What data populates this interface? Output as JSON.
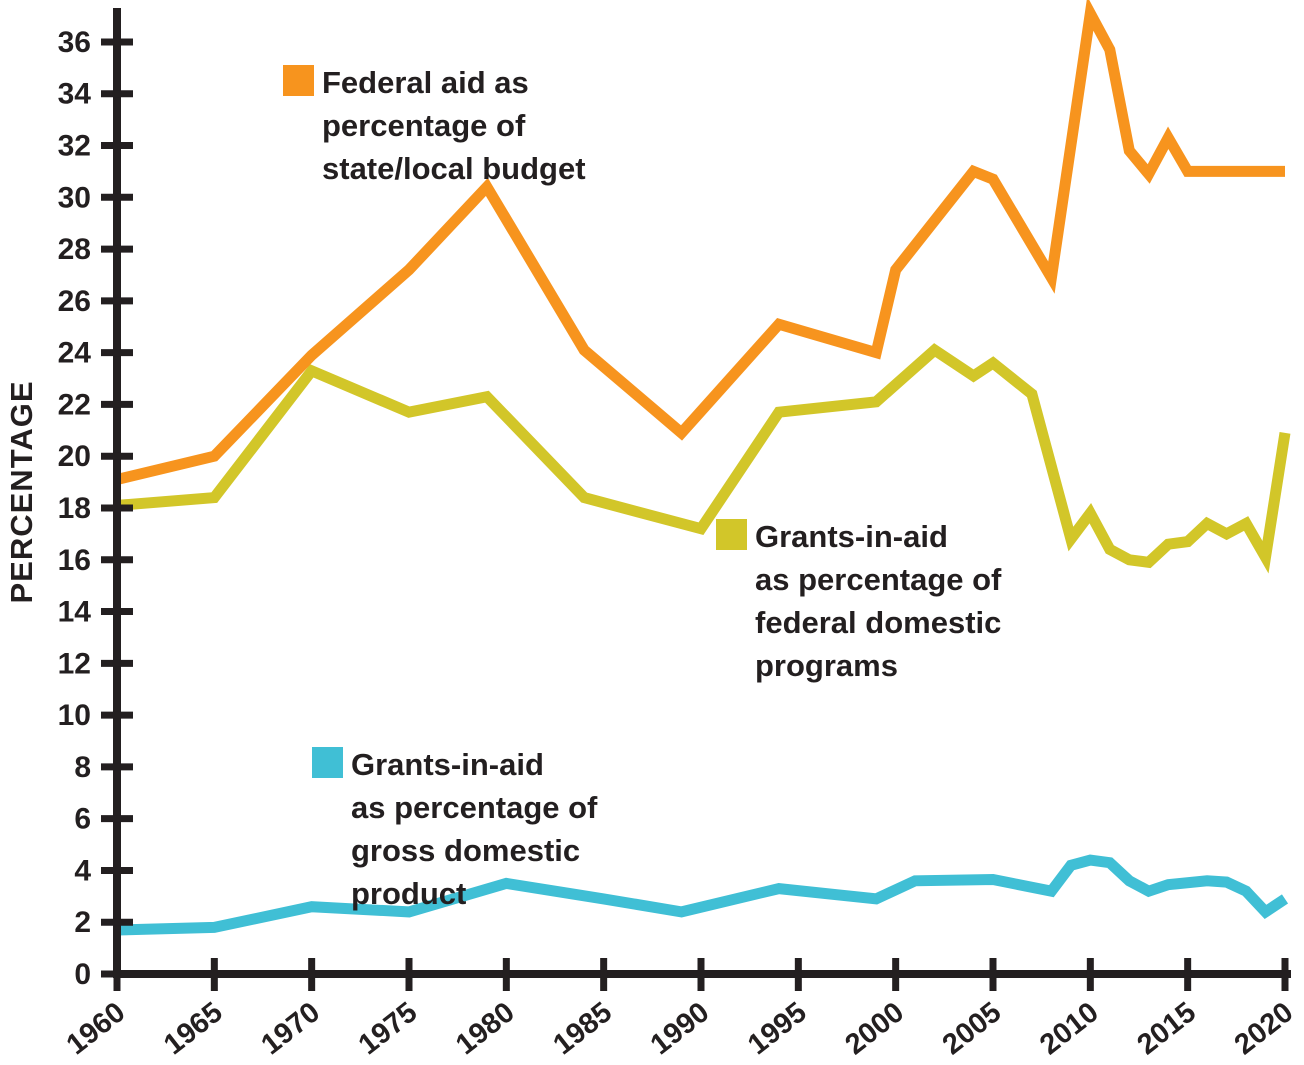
{
  "y_axis": {
    "label": "PERCENTAGE",
    "ticks": [
      0,
      2,
      4,
      6,
      8,
      10,
      12,
      14,
      16,
      18,
      20,
      22,
      24,
      26,
      28,
      30,
      32,
      34,
      36
    ]
  },
  "x_axis": {
    "ticks": [
      1960,
      1965,
      1970,
      1975,
      1980,
      1985,
      1990,
      1995,
      2000,
      2005,
      2010,
      2015,
      2020
    ]
  },
  "colors": {
    "ink": "#231F20",
    "orange": "#F7941E",
    "yellow": "#D2C629",
    "cyan": "#40BFD5",
    "background": "#FFFFFF"
  },
  "legends": [
    {
      "series": "federal-aid-state-local",
      "color": "#F7941E",
      "lines": [
        "Federal aid as",
        "percentage of",
        "state/local budget"
      ]
    },
    {
      "series": "grants-federal-domestic",
      "color": "#D2C629",
      "lines": [
        "Grants-in-aid",
        "as percentage of",
        "federal domestic",
        "programs"
      ]
    },
    {
      "series": "grants-gdp",
      "color": "#40BFD5",
      "lines": [
        "Grants-in-aid",
        "as percentage of",
        "gross domestic",
        "product"
      ]
    }
  ],
  "chart_data": {
    "type": "line",
    "title": "",
    "xlabel": "",
    "ylabel": "PERCENTAGE",
    "xlim": [
      1960,
      2020
    ],
    "ylim": [
      0,
      37.3
    ],
    "grid": false,
    "legend_position": "inside",
    "x_ticks": [
      1960,
      1965,
      1970,
      1975,
      1980,
      1985,
      1990,
      1995,
      2000,
      2005,
      2010,
      2015,
      2020
    ],
    "y_ticks": [
      0,
      2,
      4,
      6,
      8,
      10,
      12,
      14,
      16,
      18,
      20,
      22,
      24,
      26,
      28,
      30,
      32,
      34,
      36
    ],
    "series": [
      {
        "name": "Federal aid as percentage of state/local budget",
        "color": "#F7941E",
        "points": [
          [
            1960,
            19.1
          ],
          [
            1965,
            20.0
          ],
          [
            1970,
            23.9
          ],
          [
            1975,
            27.2
          ],
          [
            1979,
            30.4
          ],
          [
            1984,
            24.1
          ],
          [
            1989,
            20.9
          ],
          [
            1994,
            25.1
          ],
          [
            1999,
            24.0
          ],
          [
            2000,
            27.2
          ],
          [
            2004,
            31.0
          ],
          [
            2005,
            30.7
          ],
          [
            2008,
            26.9
          ],
          [
            2010,
            37.1
          ],
          [
            2011,
            35.7
          ],
          [
            2012,
            31.8
          ],
          [
            2013,
            30.9
          ],
          [
            2014,
            32.3
          ],
          [
            2015,
            31.0
          ],
          [
            2020,
            31.0
          ]
        ]
      },
      {
        "name": "Grants-in-aid as percentage of federal domestic programs",
        "color": "#D2C629",
        "points": [
          [
            1960,
            18.1
          ],
          [
            1965,
            18.4
          ],
          [
            1970,
            23.3
          ],
          [
            1975,
            21.7
          ],
          [
            1979,
            22.3
          ],
          [
            1984,
            18.4
          ],
          [
            1987,
            17.8
          ],
          [
            1990,
            17.2
          ],
          [
            1994,
            21.7
          ],
          [
            1999,
            22.1
          ],
          [
            2002,
            24.1
          ],
          [
            2004,
            23.1
          ],
          [
            2005,
            23.6
          ],
          [
            2007,
            22.4
          ],
          [
            2009,
            16.8
          ],
          [
            2010,
            17.8
          ],
          [
            2011,
            16.4
          ],
          [
            2012,
            16.0
          ],
          [
            2013,
            15.9
          ],
          [
            2014,
            16.6
          ],
          [
            2015,
            16.7
          ],
          [
            2016,
            17.4
          ],
          [
            2017,
            17.0
          ],
          [
            2018,
            17.4
          ],
          [
            2019,
            16.1
          ],
          [
            2020,
            20.9
          ]
        ]
      },
      {
        "name": "Grants-in-aid as percentage of gross domestic product",
        "color": "#40BFD5",
        "points": [
          [
            1960,
            1.7
          ],
          [
            1965,
            1.8
          ],
          [
            1970,
            2.6
          ],
          [
            1975,
            2.4
          ],
          [
            1980,
            3.5
          ],
          [
            1985,
            2.9
          ],
          [
            1989,
            2.4
          ],
          [
            1994,
            3.3
          ],
          [
            1999,
            2.9
          ],
          [
            2001,
            3.6
          ],
          [
            2005,
            3.65
          ],
          [
            2006,
            3.5
          ],
          [
            2008,
            3.2
          ],
          [
            2009,
            4.2
          ],
          [
            2010,
            4.4
          ],
          [
            2011,
            4.3
          ],
          [
            2012,
            3.6
          ],
          [
            2013,
            3.2
          ],
          [
            2014,
            3.45
          ],
          [
            2016,
            3.6
          ],
          [
            2017,
            3.55
          ],
          [
            2018,
            3.2
          ],
          [
            2019,
            2.4
          ],
          [
            2020,
            2.9
          ]
        ]
      }
    ]
  }
}
